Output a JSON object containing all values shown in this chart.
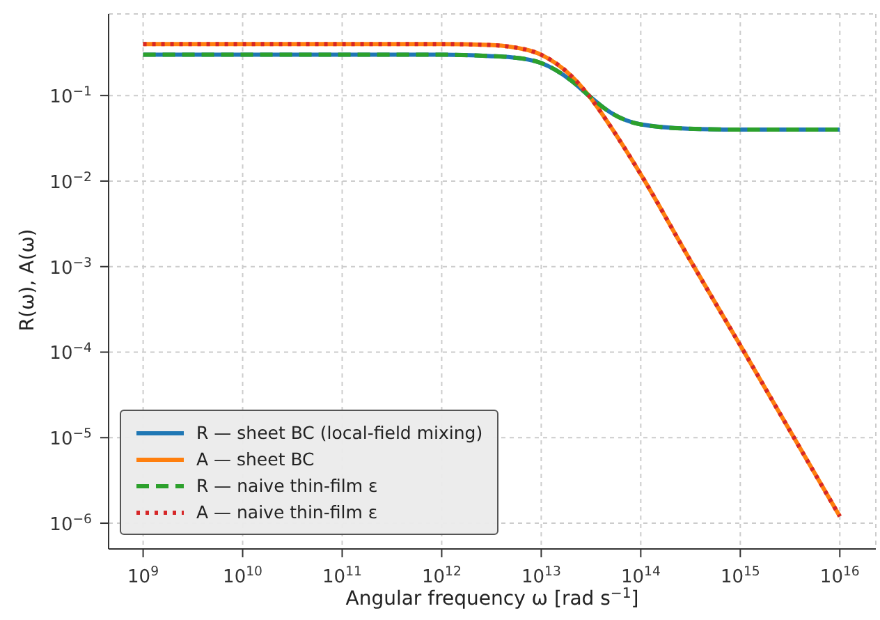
{
  "chart_data": {
    "type": "line",
    "xlabel": "Angular frequency ω [rad s$^{−1}$]",
    "ylabel": "R(ω), A(ω)",
    "log": "xy",
    "grid": true,
    "legend": "bottom left",
    "xlim": [
      450000000.0,
      2.3e+16
    ],
    "ylim": [
      5e-07,
      0.9
    ],
    "xticks": [
      {
        "value": 1000000000.0,
        "label": "10$^{9}$"
      },
      {
        "value": 10000000000.0,
        "label": "10$^{10}$"
      },
      {
        "value": 100000000000.0,
        "label": "10$^{11}$"
      },
      {
        "value": 1000000000000.0,
        "label": "10$^{12}$"
      },
      {
        "value": 10000000000000.0,
        "label": "10$^{13}$"
      },
      {
        "value": 100000000000000.0,
        "label": "10$^{14}$"
      },
      {
        "value": 1000000000000000.0,
        "label": "10$^{15}$"
      },
      {
        "value": 1e+16,
        "label": "10$^{16}$"
      }
    ],
    "yticks": [
      {
        "value": 1e-06,
        "label": "10$^{−6}$"
      },
      {
        "value": 1e-05,
        "label": "10$^{−5}$"
      },
      {
        "value": 0.0001,
        "label": "10$^{−4}$"
      },
      {
        "value": 0.001,
        "label": "10$^{−3}$"
      },
      {
        "value": 0.01,
        "label": "10$^{−2}$"
      },
      {
        "value": 0.1,
        "label": "10$^{−1}$"
      }
    ],
    "x": [
      1000000000.0,
      1000000000000.0,
      3000000000000.0,
      5000000000000.0,
      10000000000000.0,
      20000000000000.0,
      30000000000000.0,
      50000000000000.0,
      100000000000000.0,
      300000000000000.0,
      1000000000000000.0,
      3000000000000000.0,
      1e+16
    ],
    "series": [
      {
        "name": "R — sheet BC (local-field mixing)",
        "color": "#1f77b4",
        "line_style": "solid",
        "values": [
          0.3,
          0.3,
          0.29,
          0.28,
          0.24,
          0.15,
          0.1,
          0.063,
          0.046,
          0.041,
          0.04,
          0.04,
          0.04
        ]
      },
      {
        "name": "A — sheet BC",
        "color": "#ff7f0e",
        "line_style": "solid",
        "values": [
          0.4,
          0.4,
          0.39,
          0.37,
          0.3,
          0.17,
          0.1,
          0.043,
          0.012,
          0.0013,
          0.00012,
          1.33e-05,
          1.2e-06
        ]
      },
      {
        "name": "R — naive thin-film ε",
        "color": "#2ca02c",
        "line_style": "dashed",
        "values": [
          0.3,
          0.3,
          0.29,
          0.28,
          0.24,
          0.15,
          0.1,
          0.063,
          0.046,
          0.041,
          0.04,
          0.04,
          0.04
        ]
      },
      {
        "name": "A — naive thin-film ε",
        "color": "#d62728",
        "line_style": "dotted",
        "values": [
          0.4,
          0.4,
          0.39,
          0.37,
          0.3,
          0.17,
          0.1,
          0.043,
          0.012,
          0.0013,
          0.00012,
          1.33e-05,
          1.2e-06
        ]
      }
    ]
  }
}
